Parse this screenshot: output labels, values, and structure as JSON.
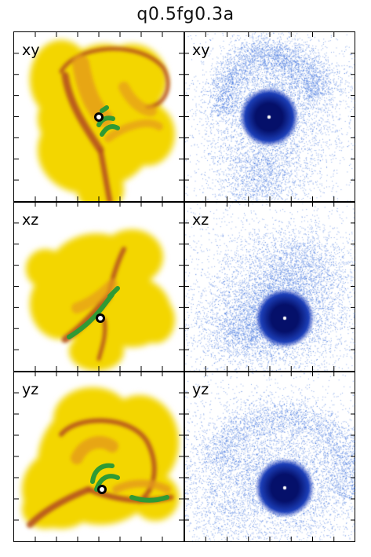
{
  "title": "q0.5fg0.3a",
  "panels": [
    {
      "label": "xy",
      "kind": "gas",
      "row": 0,
      "col": 0
    },
    {
      "label": "xy",
      "kind": "stars",
      "row": 0,
      "col": 1
    },
    {
      "label": "xz",
      "kind": "gas",
      "row": 1,
      "col": 0
    },
    {
      "label": "xz",
      "kind": "stars",
      "row": 1,
      "col": 1
    },
    {
      "label": "yz",
      "kind": "gas",
      "row": 2,
      "col": 0
    },
    {
      "label": "yz",
      "kind": "stars",
      "row": 2,
      "col": 1
    }
  ],
  "colors": {
    "gas_low": "#f3d600",
    "gas_mid": "#e59a1c",
    "gas_high": "#b5501c",
    "gas_dense": "#2f9a35",
    "star_dark": "#05106a",
    "star_mid": "#1c3fb8",
    "star_dot": "#2660d8"
  }
}
